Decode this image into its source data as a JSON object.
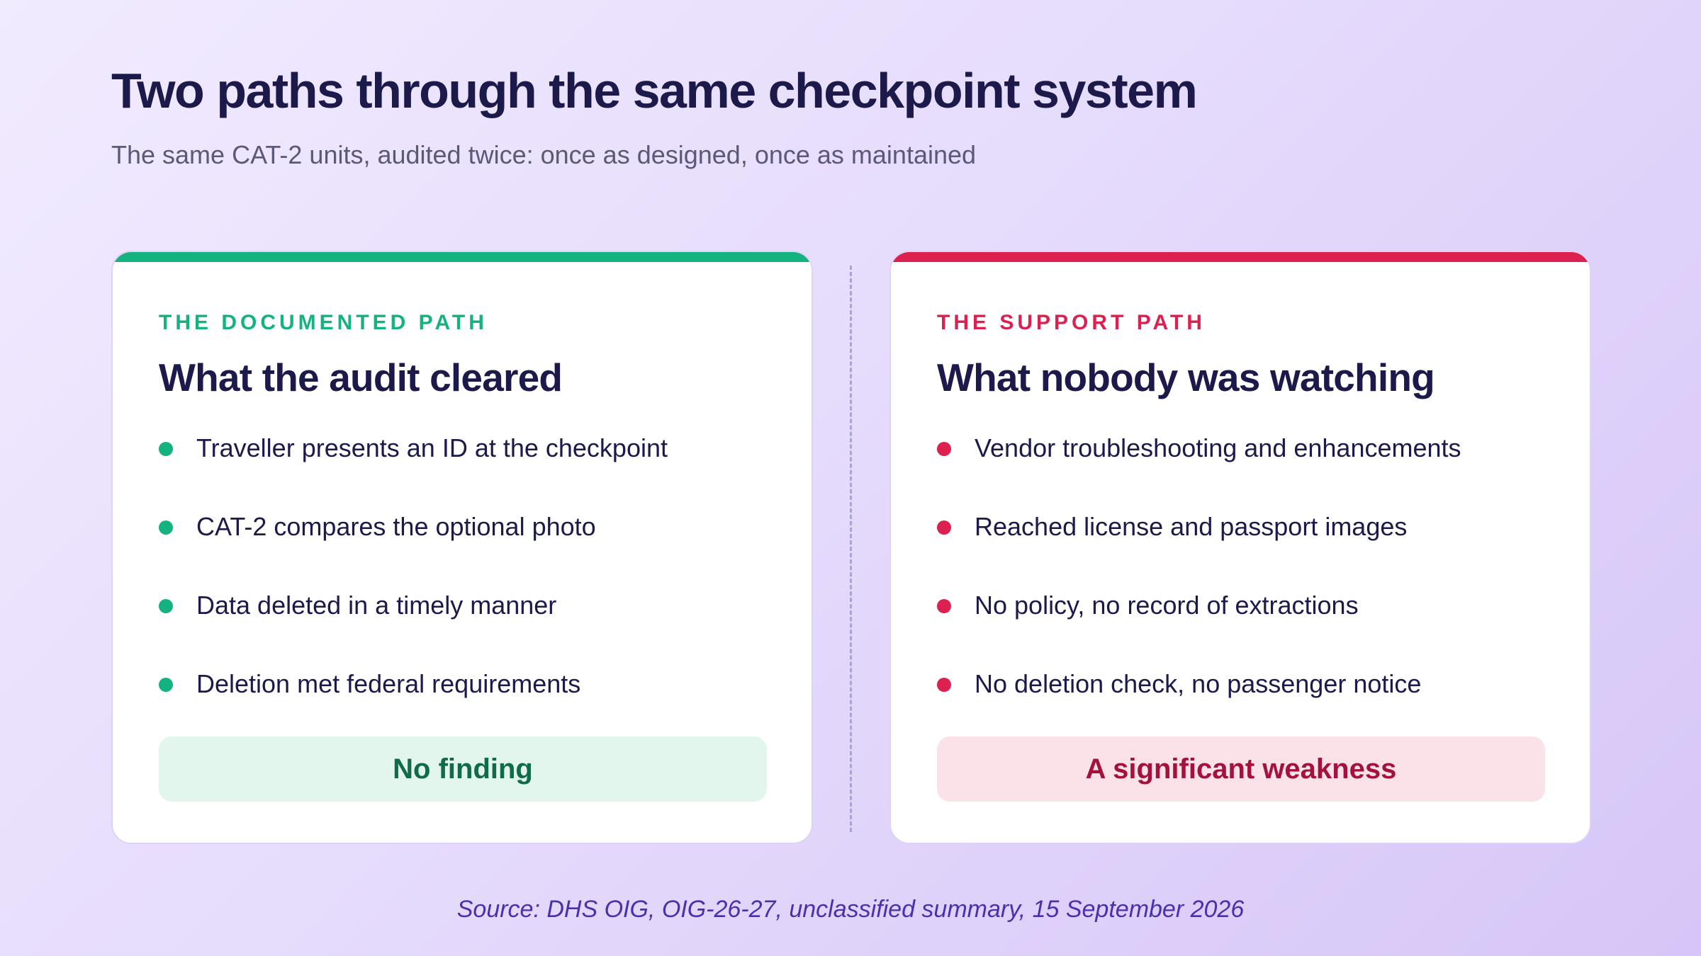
{
  "header": {
    "title": "Two paths through the same checkpoint system",
    "subtitle": "The same CAT-2 units, audited twice: once as designed, once as maintained"
  },
  "cards": {
    "documented": {
      "eyebrow": "THE DOCUMENTED PATH",
      "heading": "What the audit cleared",
      "items": [
        "Traveller presents an ID at the checkpoint",
        "CAT-2 compares the optional photo",
        "Data deleted in a timely manner",
        "Deletion met federal requirements"
      ],
      "verdict": "No finding",
      "accent_color": "#14b27e"
    },
    "support": {
      "eyebrow": "THE SUPPORT PATH",
      "heading": "What nobody was watching",
      "items": [
        "Vendor troubleshooting and enhancements",
        "Reached license and passport images",
        "No policy, no record of extractions",
        "No deletion check, no passenger notice"
      ],
      "verdict": "A significant weakness",
      "accent_color": "#dc2150"
    }
  },
  "footer": {
    "source": "Source: DHS OIG, OIG-26-27, unclassified summary, 15 September 2026"
  }
}
